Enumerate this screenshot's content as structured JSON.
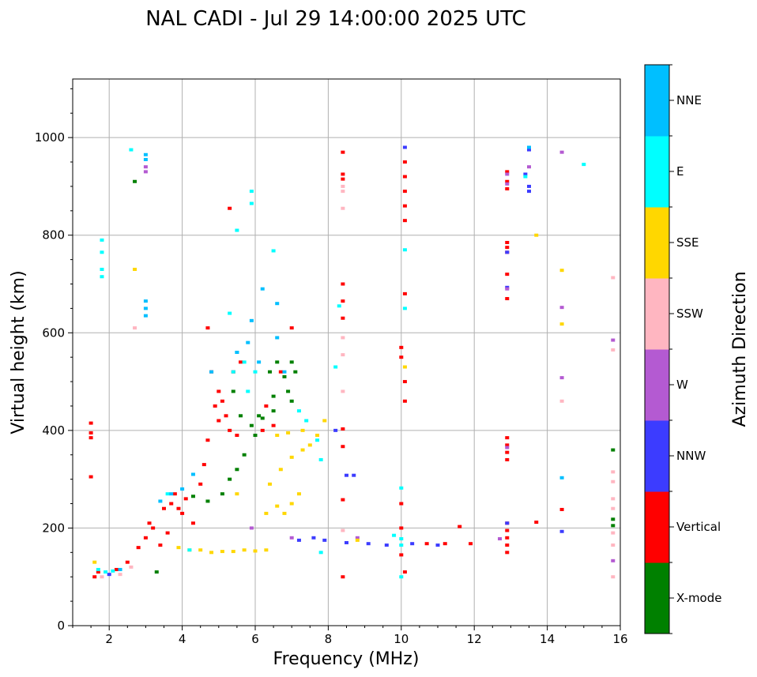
{
  "chart_data": {
    "type": "scatter",
    "title": "NAL CADI - Jul 29 14:00:00 2025 UTC",
    "xlabel": "Frequency (MHz)",
    "ylabel": "Virtual height (km)",
    "xlim": [
      1,
      16
    ],
    "ylim": [
      0,
      1120
    ],
    "xticks": [
      2,
      4,
      6,
      8,
      10,
      12,
      14,
      16
    ],
    "yticks": [
      0,
      200,
      400,
      600,
      800,
      1000
    ],
    "grid": true,
    "colorbar": {
      "label": "Azimuth Direction",
      "categories": [
        "X-mode",
        "Vertical",
        "NNW",
        "W",
        "SSW",
        "SSE",
        "E",
        "NNE"
      ],
      "colors": [
        "#008000",
        "#ff0000",
        "#3c3cff",
        "#b45ad2",
        "#ffb6c1",
        "#ffd700",
        "#00ffff",
        "#00bfff"
      ]
    },
    "series": [
      {
        "name": "X-mode",
        "color": "#008000",
        "points": [
          [
            2.7,
            910
          ],
          [
            4.3,
            265
          ],
          [
            4.7,
            255
          ],
          [
            5.1,
            270
          ],
          [
            5.3,
            300
          ],
          [
            5.5,
            320
          ],
          [
            5.6,
            430
          ],
          [
            5.9,
            410
          ],
          [
            6.1,
            430
          ],
          [
            6.2,
            425
          ],
          [
            6.4,
            520
          ],
          [
            6.5,
            440
          ],
          [
            6.5,
            470
          ],
          [
            6.6,
            540
          ],
          [
            6.8,
            510
          ],
          [
            6.9,
            480
          ],
          [
            7.0,
            540
          ],
          [
            7.0,
            460
          ],
          [
            7.1,
            520
          ],
          [
            5.4,
            480
          ],
          [
            5.7,
            350
          ],
          [
            6.0,
            390
          ],
          [
            3.3,
            110
          ],
          [
            15.8,
            360
          ],
          [
            15.8,
            218
          ],
          [
            15.8,
            205
          ]
        ]
      },
      {
        "name": "Vertical",
        "color": "#ff0000",
        "points": [
          [
            1.5,
            415
          ],
          [
            1.5,
            395
          ],
          [
            1.5,
            385
          ],
          [
            1.5,
            305
          ],
          [
            1.6,
            100
          ],
          [
            1.7,
            110
          ],
          [
            2.2,
            115
          ],
          [
            2.5,
            130
          ],
          [
            2.8,
            160
          ],
          [
            3.0,
            180
          ],
          [
            3.1,
            210
          ],
          [
            3.2,
            200
          ],
          [
            3.4,
            165
          ],
          [
            3.5,
            240
          ],
          [
            3.6,
            190
          ],
          [
            3.7,
            250
          ],
          [
            3.8,
            270
          ],
          [
            3.9,
            240
          ],
          [
            4.0,
            230
          ],
          [
            4.1,
            260
          ],
          [
            4.3,
            210
          ],
          [
            4.5,
            290
          ],
          [
            4.6,
            330
          ],
          [
            4.7,
            380
          ],
          [
            4.7,
            610
          ],
          [
            4.8,
            520
          ],
          [
            4.9,
            450
          ],
          [
            5.0,
            420
          ],
          [
            5.0,
            480
          ],
          [
            5.1,
            460
          ],
          [
            5.2,
            430
          ],
          [
            5.3,
            400
          ],
          [
            5.4,
            520
          ],
          [
            5.5,
            390
          ],
          [
            5.6,
            540
          ],
          [
            5.3,
            855
          ],
          [
            6.2,
            400
          ],
          [
            6.3,
            450
          ],
          [
            6.5,
            410
          ],
          [
            6.7,
            520
          ],
          [
            7.0,
            610
          ],
          [
            8.4,
            970
          ],
          [
            8.4,
            925
          ],
          [
            8.4,
            915
          ],
          [
            8.4,
            700
          ],
          [
            8.4,
            665
          ],
          [
            8.4,
            630
          ],
          [
            8.4,
            403
          ],
          [
            8.4,
            367
          ],
          [
            8.4,
            258
          ],
          [
            8.4,
            100
          ],
          [
            10.0,
            570
          ],
          [
            10.0,
            550
          ],
          [
            10.1,
            950
          ],
          [
            10.1,
            920
          ],
          [
            10.1,
            890
          ],
          [
            10.1,
            860
          ],
          [
            10.1,
            830
          ],
          [
            10.1,
            680
          ],
          [
            10.1,
            500
          ],
          [
            10.1,
            460
          ],
          [
            10.0,
            250
          ],
          [
            10.0,
            200
          ],
          [
            10.0,
            145
          ],
          [
            10.1,
            110
          ],
          [
            10.7,
            168
          ],
          [
            11.2,
            168
          ],
          [
            11.9,
            168
          ],
          [
            11.6,
            203
          ],
          [
            12.9,
            930
          ],
          [
            12.9,
            910
          ],
          [
            12.9,
            895
          ],
          [
            12.9,
            785
          ],
          [
            12.9,
            775
          ],
          [
            12.9,
            765
          ],
          [
            12.9,
            720
          ],
          [
            12.9,
            670
          ],
          [
            12.9,
            385
          ],
          [
            12.9,
            370
          ],
          [
            12.9,
            355
          ],
          [
            12.9,
            340
          ],
          [
            12.9,
            210
          ],
          [
            12.9,
            195
          ],
          [
            12.9,
            180
          ],
          [
            12.9,
            165
          ],
          [
            12.9,
            150
          ],
          [
            13.7,
            212
          ],
          [
            14.4,
            238
          ]
        ]
      },
      {
        "name": "NNW",
        "color": "#3c3cff",
        "points": [
          [
            2.0,
            105
          ],
          [
            10.1,
            980
          ],
          [
            13.5,
            975
          ],
          [
            13.5,
            900
          ],
          [
            13.5,
            890
          ],
          [
            12.9,
            765
          ],
          [
            12.9,
            693
          ],
          [
            8.2,
            400
          ],
          [
            8.5,
            308
          ],
          [
            8.7,
            308
          ],
          [
            7.6,
            180
          ],
          [
            7.2,
            175
          ],
          [
            7.9,
            175
          ],
          [
            8.5,
            170
          ],
          [
            9.1,
            168
          ],
          [
            9.6,
            165
          ],
          [
            10.3,
            168
          ],
          [
            11.0,
            165
          ],
          [
            12.9,
            210
          ],
          [
            14.4,
            193
          ],
          [
            13.4,
            925
          ]
        ]
      },
      {
        "name": "W",
        "color": "#b45ad2",
        "points": [
          [
            3.0,
            940
          ],
          [
            3.0,
            930
          ],
          [
            12.9,
            925
          ],
          [
            12.9,
            905
          ],
          [
            13.5,
            940
          ],
          [
            14.4,
            970
          ],
          [
            14.4,
            652
          ],
          [
            14.4,
            508
          ],
          [
            12.9,
            690
          ],
          [
            12.9,
            365
          ],
          [
            15.8,
            585
          ],
          [
            15.8,
            133
          ],
          [
            7.0,
            180
          ],
          [
            8.8,
            180
          ],
          [
            12.7,
            178
          ],
          [
            5.9,
            200
          ]
        ]
      },
      {
        "name": "SSW",
        "color": "#ffb6c1",
        "points": [
          [
            1.8,
            100
          ],
          [
            2.3,
            105
          ],
          [
            2.6,
            120
          ],
          [
            8.4,
            900
          ],
          [
            8.4,
            890
          ],
          [
            8.4,
            855
          ],
          [
            8.4,
            590
          ],
          [
            8.4,
            555
          ],
          [
            8.4,
            480
          ],
          [
            8.4,
            195
          ],
          [
            14.4,
            460
          ],
          [
            15.8,
            713
          ],
          [
            15.8,
            565
          ],
          [
            15.8,
            315
          ],
          [
            15.8,
            295
          ],
          [
            15.8,
            260
          ],
          [
            15.8,
            240
          ],
          [
            15.8,
            190
          ],
          [
            15.8,
            165
          ],
          [
            15.8,
            100
          ],
          [
            2.7,
            610
          ]
        ]
      },
      {
        "name": "SSE",
        "color": "#ffd700",
        "points": [
          [
            1.6,
            130
          ],
          [
            3.9,
            160
          ],
          [
            4.2,
            155
          ],
          [
            4.5,
            155
          ],
          [
            4.8,
            150
          ],
          [
            5.1,
            152
          ],
          [
            5.4,
            152
          ],
          [
            5.7,
            155
          ],
          [
            6.0,
            153
          ],
          [
            6.3,
            155
          ],
          [
            5.5,
            270
          ],
          [
            6.3,
            230
          ],
          [
            6.6,
            245
          ],
          [
            6.8,
            230
          ],
          [
            7.0,
            250
          ],
          [
            7.2,
            270
          ],
          [
            6.4,
            290
          ],
          [
            6.7,
            320
          ],
          [
            7.0,
            345
          ],
          [
            7.3,
            360
          ],
          [
            7.5,
            370
          ],
          [
            7.7,
            390
          ],
          [
            7.9,
            420
          ],
          [
            6.6,
            390
          ],
          [
            6.9,
            395
          ],
          [
            7.3,
            400
          ],
          [
            10.1,
            530
          ],
          [
            13.7,
            800
          ],
          [
            14.4,
            728
          ],
          [
            14.4,
            618
          ],
          [
            8.8,
            175
          ],
          [
            2.7,
            730
          ]
        ]
      },
      {
        "name": "E",
        "color": "#00ffff",
        "points": [
          [
            1.8,
            790
          ],
          [
            1.8,
            765
          ],
          [
            1.8,
            730
          ],
          [
            1.8,
            715
          ],
          [
            1.7,
            115
          ],
          [
            1.9,
            110
          ],
          [
            2.1,
            112
          ],
          [
            3.6,
            270
          ],
          [
            4.2,
            155
          ],
          [
            5.3,
            640
          ],
          [
            5.5,
            560
          ],
          [
            5.7,
            540
          ],
          [
            6.0,
            520
          ],
          [
            5.9,
            890
          ],
          [
            5.9,
            865
          ],
          [
            5.5,
            810
          ],
          [
            6.5,
            768
          ],
          [
            5.4,
            520
          ],
          [
            5.8,
            480
          ],
          [
            7.2,
            440
          ],
          [
            7.4,
            420
          ],
          [
            7.7,
            380
          ],
          [
            7.8,
            340
          ],
          [
            10.0,
            282
          ],
          [
            10.1,
            770
          ],
          [
            10.1,
            650
          ],
          [
            8.3,
            655
          ],
          [
            8.2,
            530
          ],
          [
            10.0,
            178
          ],
          [
            10.0,
            165
          ],
          [
            10.0,
            100
          ],
          [
            9.8,
            185
          ],
          [
            15.0,
            945
          ],
          [
            13.4,
            920
          ],
          [
            7.8,
            150
          ],
          [
            2.6,
            975
          ]
        ]
      },
      {
        "name": "NNE",
        "color": "#00bfff",
        "points": [
          [
            3.0,
            965
          ],
          [
            3.0,
            955
          ],
          [
            3.0,
            665
          ],
          [
            3.0,
            650
          ],
          [
            3.0,
            635
          ],
          [
            3.4,
            255
          ],
          [
            3.7,
            270
          ],
          [
            4.0,
            280
          ],
          [
            4.3,
            310
          ],
          [
            4.8,
            520
          ],
          [
            5.5,
            560
          ],
          [
            5.8,
            580
          ],
          [
            6.2,
            690
          ],
          [
            6.6,
            660
          ],
          [
            6.6,
            590
          ],
          [
            6.8,
            520
          ],
          [
            5.9,
            625
          ],
          [
            6.1,
            540
          ],
          [
            13.5,
            980
          ],
          [
            14.4,
            303
          ],
          [
            2.3,
            115
          ]
        ]
      }
    ]
  }
}
